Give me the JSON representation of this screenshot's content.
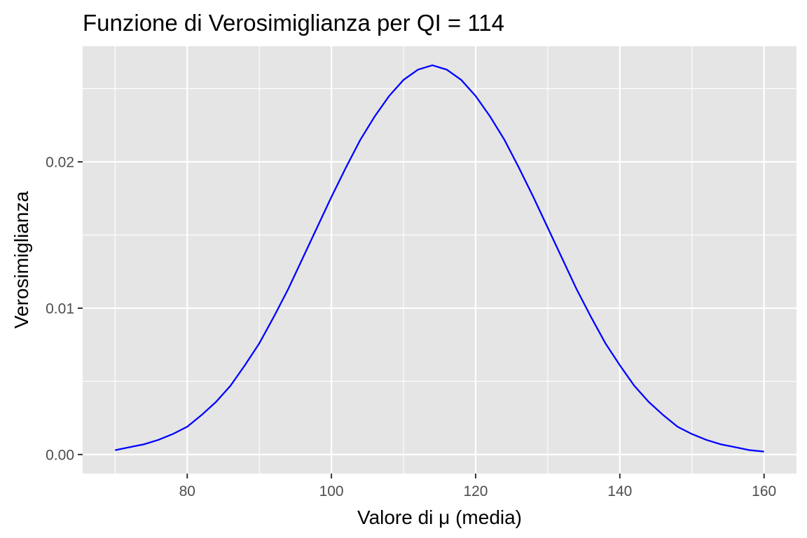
{
  "chart_data": {
    "type": "line",
    "title": "Funzione di Verosimiglianza per QI = 114",
    "xlabel": "Valore di μ (media)",
    "ylabel": "Verosimiglianza",
    "xlim": [
      65.5,
      164.5
    ],
    "ylim": [
      -0.0013,
      0.0279
    ],
    "x_ticks": [
      80,
      100,
      120,
      140,
      160
    ],
    "x_tick_labels": [
      "80",
      "100",
      "120",
      "140",
      "160"
    ],
    "y_ticks": [
      0.0,
      0.01,
      0.02
    ],
    "y_tick_labels": [
      "0.00",
      "0.01",
      "0.02"
    ],
    "grid": true,
    "legend": "none",
    "series": [
      {
        "color": "#0000ff",
        "x": [
          70,
          72,
          74,
          76,
          78,
          80,
          82,
          84,
          86,
          88,
          90,
          92,
          94,
          96,
          98,
          100,
          102,
          104,
          106,
          108,
          110,
          112,
          114,
          116,
          118,
          120,
          122,
          124,
          126,
          128,
          130,
          132,
          134,
          136,
          138,
          140,
          142,
          144,
          146,
          148,
          150,
          152,
          154,
          156,
          158,
          160
        ],
        "y": [
          0.0003,
          0.0005,
          0.0007,
          0.001,
          0.0014,
          0.0019,
          0.0027,
          0.0036,
          0.0047,
          0.0061,
          0.0076,
          0.0094,
          0.0113,
          0.0134,
          0.0155,
          0.0176,
          0.0196,
          0.0215,
          0.0231,
          0.0245,
          0.0256,
          0.0263,
          0.0266,
          0.0263,
          0.0256,
          0.0245,
          0.0231,
          0.0215,
          0.0196,
          0.0176,
          0.0155,
          0.0134,
          0.0113,
          0.0094,
          0.0076,
          0.0061,
          0.0047,
          0.0036,
          0.0027,
          0.0019,
          0.0014,
          0.001,
          0.0007,
          0.0005,
          0.0003,
          0.0002
        ]
      }
    ]
  },
  "colors": {
    "panel_background": "#e5e5e5",
    "grid": "#ffffff",
    "line": "#0000ff",
    "tick_text": "#4d4d4d",
    "tick_mark": "#333333"
  }
}
